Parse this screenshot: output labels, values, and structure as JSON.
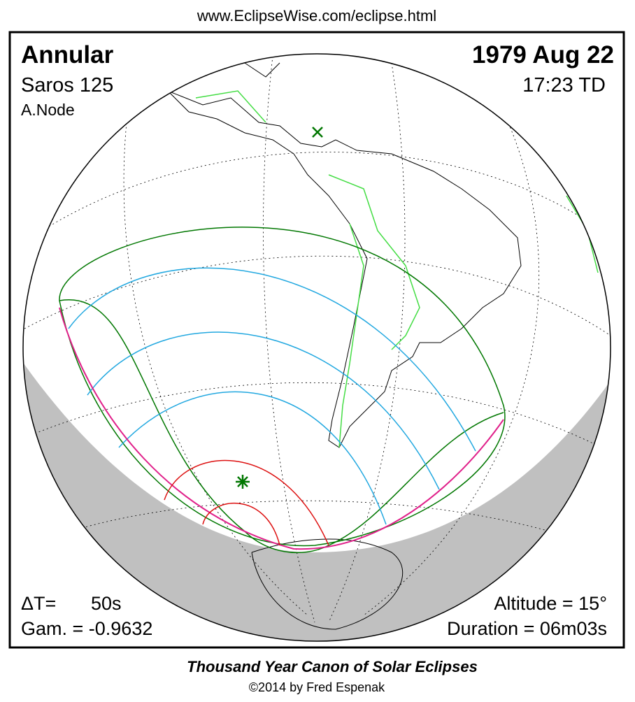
{
  "url": "www.EclipseWise.com/eclipse.html",
  "header": {
    "eclipse_type": "Annular",
    "saros": "Saros 125",
    "node": "A.Node",
    "date": "1979 Aug 22",
    "time": "17:23 TD"
  },
  "footer": {
    "delta_t_label": "ΔT=",
    "delta_t": "50s",
    "gamma": "Gam. = -0.9632",
    "altitude": "Altitude = 15°",
    "duration": "Duration = 06m03s"
  },
  "credits": {
    "canon": "Thousand Year Canon of Solar Eclipses",
    "copyright": "©2014 by Fred Espenak"
  }
}
